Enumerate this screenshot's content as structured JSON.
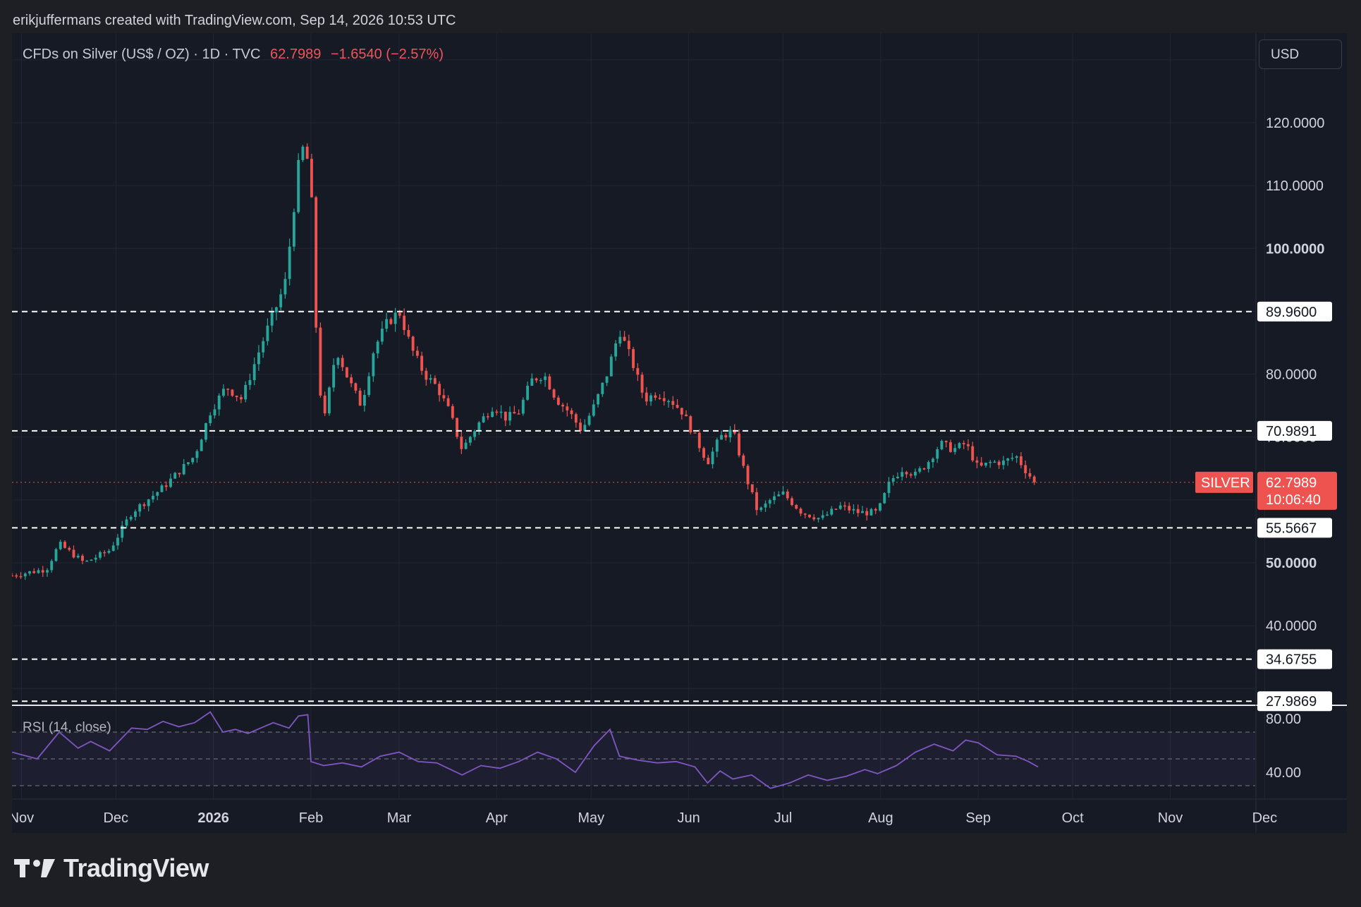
{
  "header": {
    "attribution": "erikjuffermans created with TradingView.com, Sep 14, 2026 10:53 UTC"
  },
  "legend": {
    "symbol": "CFDs on Silver (US$ / OZ) · 1D · TVC",
    "last": "62.7989",
    "change": "−1.6540 (−2.57%)"
  },
  "currency_button": {
    "label": "USD"
  },
  "rsi": {
    "label": "RSI (14, close)"
  },
  "footer": {
    "brand": "TradingView"
  },
  "colors": {
    "up": "#26a69a",
    "down": "#ef5350",
    "background": "#161a25",
    "rsi_line": "#7e57c2",
    "level_line": "#ffffff",
    "price_marker": "#ef5350"
  },
  "chart_data": [
    {
      "type": "candlestick",
      "title": "CFDs on Silver (US$ / OZ) · 1D · TVC",
      "ylim": [
        24,
        140
      ],
      "y_ticks": [
        "120.0000",
        "110.0000",
        "100.0000",
        "80.0000",
        "70.0000",
        "50.0000",
        "40.0000"
      ],
      "x_ticks": [
        "Nov",
        "Dec",
        "2026",
        "Feb",
        "Mar",
        "Apr",
        "May",
        "Jun",
        "Jul",
        "Aug",
        "Sep",
        "Oct",
        "Nov",
        "Dec"
      ],
      "x_tick_days": [
        0,
        30,
        61,
        92,
        120,
        151,
        181,
        212,
        242,
        273,
        304,
        334,
        365,
        395
      ],
      "date_range_days": [
        -3,
        392
      ],
      "horizontal_levels": [
        "89.9600",
        "70.9891",
        "55.5667",
        "34.6755",
        "27.9869"
      ],
      "last_price": {
        "name": "SILVER",
        "value": "62.7989",
        "countdown": "10:06:40"
      },
      "price_path_days": [
        -3,
        8,
        12,
        20,
        28,
        35,
        45,
        55,
        60,
        65,
        70,
        75,
        78,
        82,
        84,
        86,
        88,
        90,
        92,
        94,
        96,
        100,
        104,
        108,
        112,
        116,
        120,
        124,
        128,
        132,
        136,
        140,
        145,
        150,
        154,
        158,
        162,
        166,
        170,
        174,
        178,
        182,
        186,
        190,
        194,
        198,
        202,
        206,
        210,
        214,
        218,
        222,
        226,
        230,
        234,
        238,
        242,
        248,
        254,
        260,
        266,
        272,
        276,
        280,
        284,
        288,
        292,
        296,
        300,
        304,
        308,
        312,
        316,
        320,
        323
      ],
      "price_path_values": [
        48,
        49,
        53,
        50,
        52,
        58,
        62,
        67,
        74,
        78,
        76,
        83,
        87,
        92,
        95,
        104,
        113,
        117,
        110,
        82,
        72,
        84,
        79,
        75,
        84,
        88,
        90,
        84,
        80,
        78,
        74,
        68,
        72,
        75,
        73,
        74,
        79,
        80,
        76,
        74,
        71,
        75,
        80,
        87,
        82,
        76,
        77,
        76,
        74,
        70,
        66,
        70,
        71,
        64,
        58,
        60,
        61,
        58,
        57,
        59,
        58,
        58,
        63,
        65,
        64,
        66,
        69,
        68,
        69,
        65,
        66,
        66,
        67,
        64,
        62.8
      ],
      "y_unit": "USD / OZ"
    },
    {
      "type": "line",
      "name": "RSI (14, close)",
      "ylim": [
        20,
        90
      ],
      "y_ticks": [
        "80.00",
        "40.00"
      ],
      "bands": [
        70,
        50,
        30
      ],
      "series": [
        {
          "name": "RSI",
          "x_days": [
            -3,
            5,
            12,
            18,
            22,
            28,
            35,
            40,
            45,
            50,
            55,
            60,
            64,
            68,
            72,
            76,
            80,
            85,
            88,
            91,
            92,
            96,
            102,
            108,
            114,
            120,
            126,
            132,
            140,
            146,
            152,
            158,
            164,
            170,
            176,
            182,
            187,
            190,
            196,
            202,
            208,
            214,
            218,
            222,
            226,
            232,
            238,
            244,
            250,
            256,
            262,
            268,
            272,
            278,
            284,
            290,
            296,
            300,
            304,
            310,
            316,
            320,
            323
          ],
          "y": [
            55,
            50,
            70,
            58,
            63,
            56,
            73,
            72,
            78,
            74,
            77,
            85,
            70,
            72,
            69,
            73,
            77,
            73,
            82,
            83,
            48,
            45,
            47,
            44,
            52,
            55,
            48,
            47,
            38,
            45,
            43,
            48,
            55,
            50,
            40,
            60,
            72,
            52,
            49,
            47,
            48,
            44,
            32,
            41,
            35,
            38,
            28,
            32,
            38,
            34,
            37,
            42,
            39,
            45,
            55,
            61,
            56,
            64,
            62,
            53,
            52,
            48,
            44
          ]
        }
      ]
    }
  ]
}
